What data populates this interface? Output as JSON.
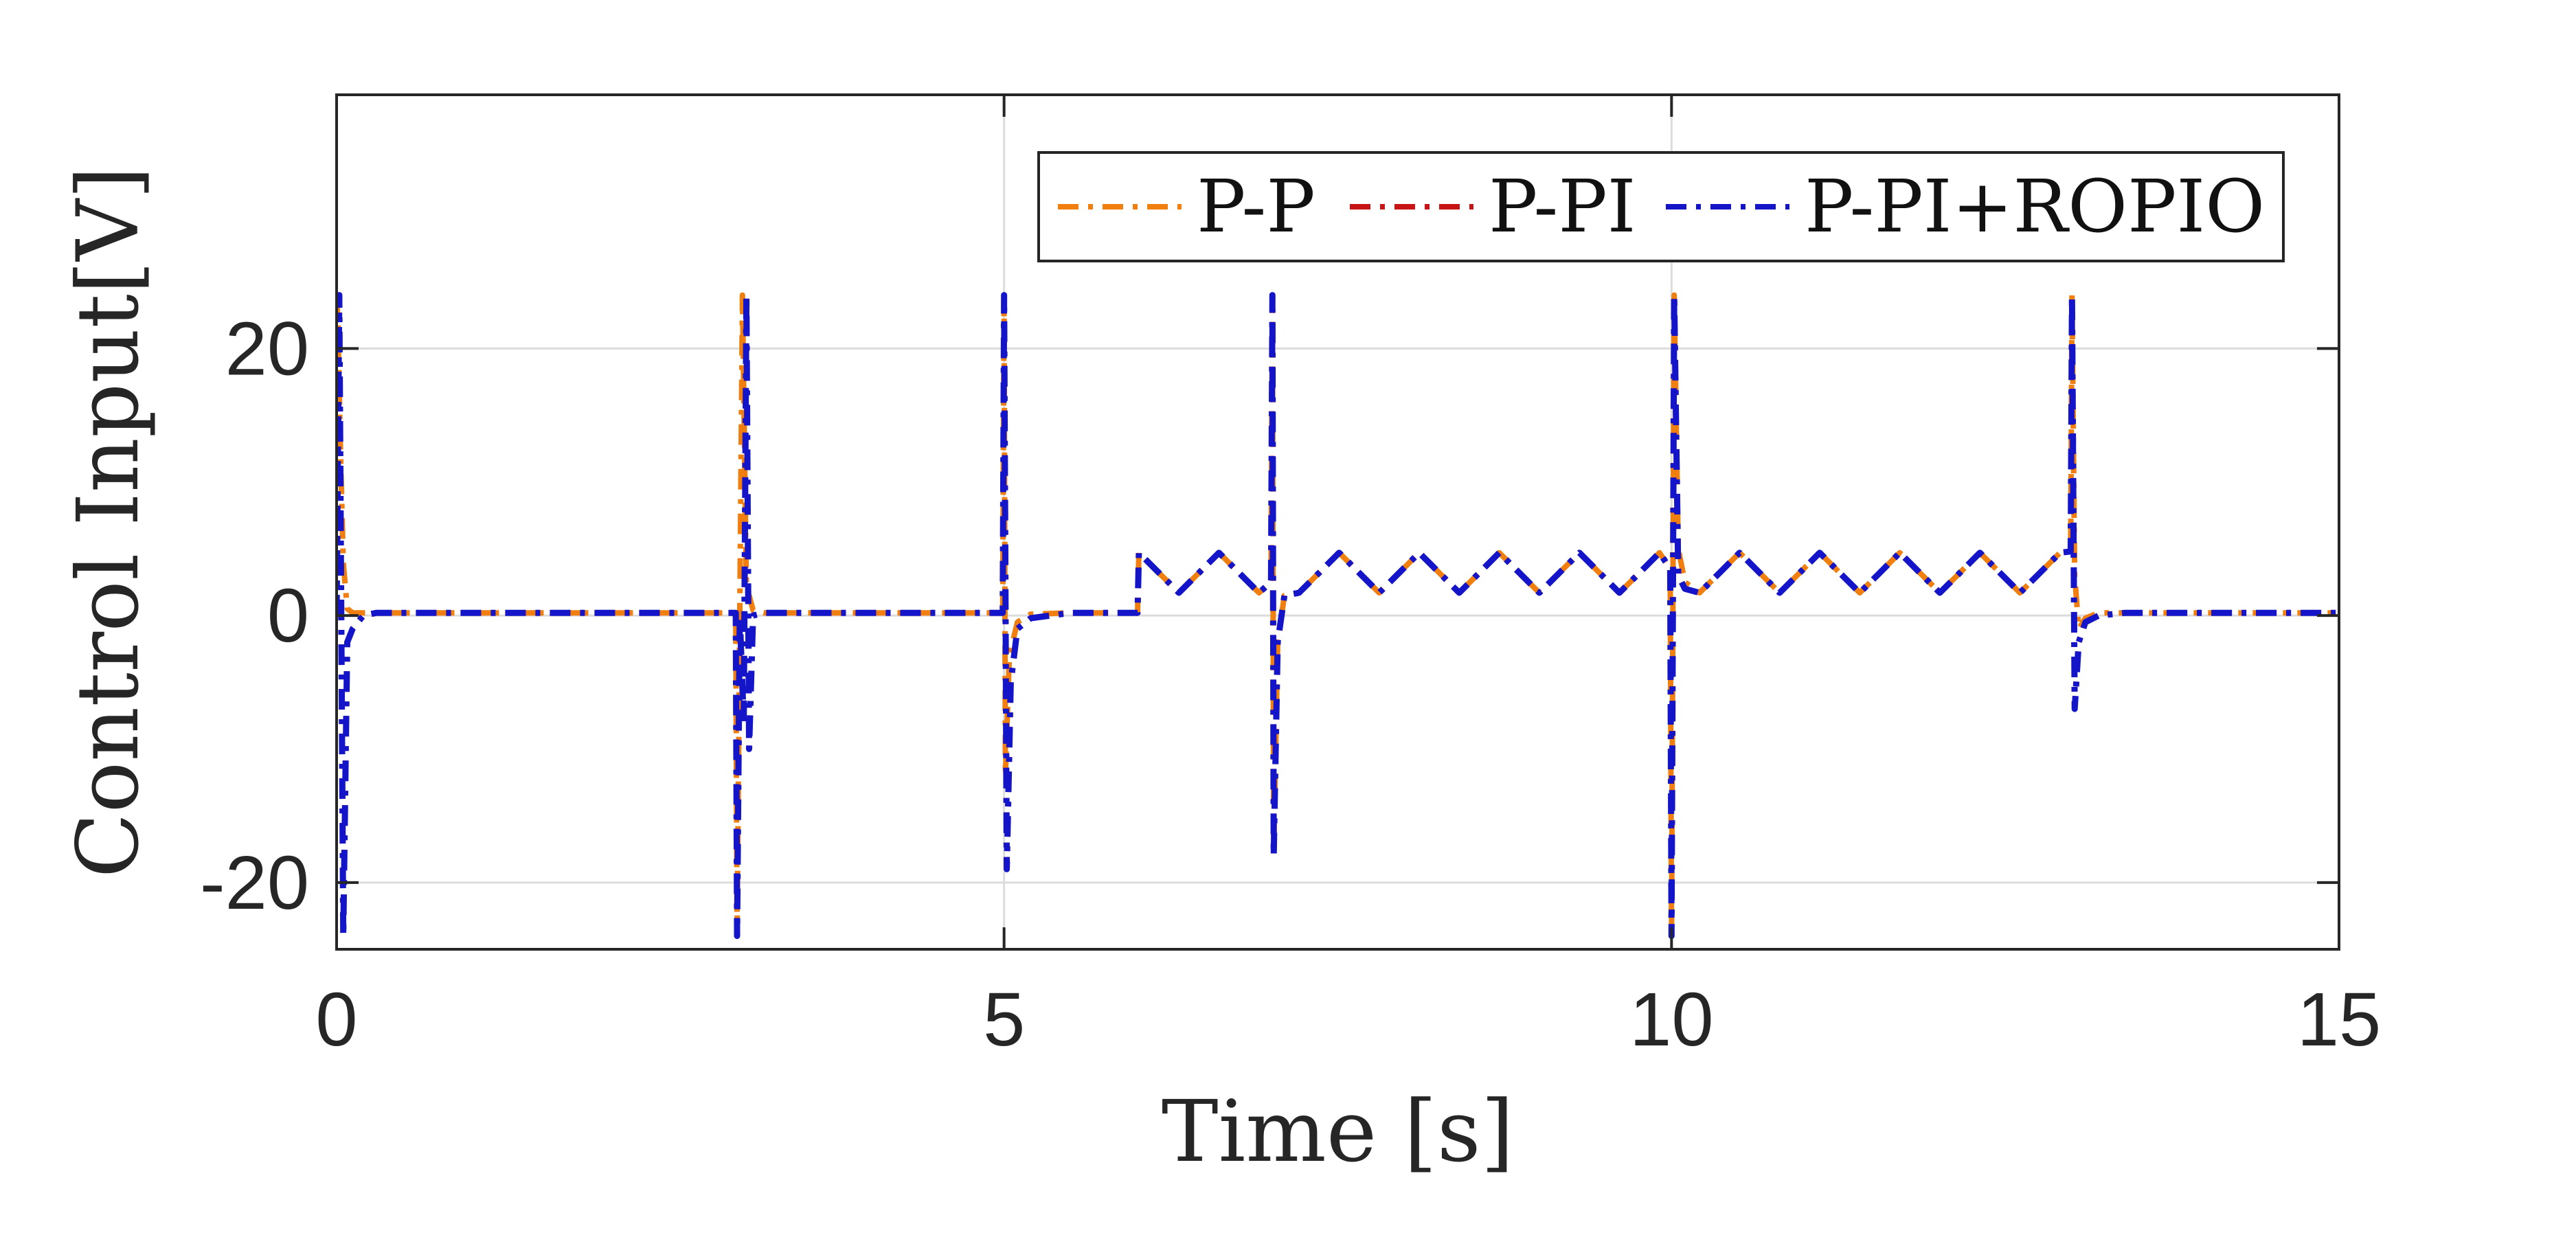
{
  "chart_data": {
    "type": "line",
    "title": "",
    "xlabel": "Time [s]",
    "ylabel": "Control Input[V]",
    "xlim": [
      0,
      15
    ],
    "ylim": [
      -25,
      39
    ],
    "xticks": [
      0,
      5,
      10,
      15
    ],
    "xtick_labels": [
      "0",
      "5",
      "10",
      "15"
    ],
    "yticks": [
      -20,
      0,
      20
    ],
    "ytick_labels": [
      "-20",
      "0",
      "20"
    ],
    "grid": true,
    "legend_position": "top-right",
    "series": [
      {
        "name": "P-P",
        "color": "#F07F10",
        "style": "dash-dot",
        "x": [
          0,
          0.01,
          0.03,
          0.05,
          0.08,
          0.12,
          0.2,
          2.99,
          3.0,
          3.04,
          3.07,
          3.09,
          3.12,
          3.2,
          3.3,
          4.99,
          5.0,
          5.01,
          5.04,
          5.1,
          5.2,
          5.5,
          6.0,
          6.01,
          6.16,
          6.31,
          6.46,
          6.61,
          6.76,
          6.91,
          7.0,
          7.01,
          7.02,
          7.05,
          7.1,
          7.21,
          7.36,
          7.51,
          7.66,
          7.81,
          7.96,
          8.11,
          8.26,
          8.41,
          8.56,
          8.71,
          8.86,
          9.01,
          9.16,
          9.31,
          9.46,
          9.61,
          9.76,
          9.91,
          9.99,
          10.0,
          10.02,
          10.05,
          10.1,
          10.21,
          10.36,
          10.51,
          10.66,
          10.81,
          10.96,
          11.11,
          11.26,
          11.41,
          11.56,
          11.71,
          11.86,
          12.01,
          12.16,
          12.31,
          12.46,
          12.61,
          12.76,
          12.91,
          12.99,
          13.0,
          13.02,
          13.05,
          13.1,
          13.2,
          13.4,
          15.0
        ],
        "y": [
          24,
          22,
          12,
          4,
          0.5,
          0.2,
          0.2,
          0.2,
          -24,
          24,
          2,
          1.5,
          0.4,
          0.2,
          0.2,
          0.2,
          24,
          -12,
          -3,
          -0.5,
          0.1,
          0.2,
          0.2,
          4.7,
          3.2,
          1.7,
          3.2,
          4.7,
          3.2,
          1.7,
          2.5,
          24,
          -18,
          -2,
          1.5,
          1.7,
          3.2,
          4.7,
          3.2,
          1.7,
          3.2,
          4.7,
          3.2,
          1.7,
          3.2,
          4.7,
          3.2,
          1.7,
          3.2,
          4.7,
          3.2,
          1.7,
          3.2,
          4.7,
          3.5,
          -24,
          24,
          5,
          2.5,
          1.7,
          3.2,
          4.7,
          3.2,
          1.7,
          3.2,
          4.7,
          3.2,
          1.7,
          3.2,
          4.7,
          3.2,
          1.7,
          3.2,
          4.7,
          3.2,
          1.7,
          3.2,
          4.7,
          4.8,
          24,
          3,
          -1,
          -0.2,
          0.2,
          0.2,
          0.2
        ]
      },
      {
        "name": "P-PI",
        "color": "#C81414",
        "style": "dash-dot",
        "x": [
          0,
          0.02,
          0.05,
          0.08,
          0.12,
          0.2,
          0.3,
          2.99,
          3.0,
          3.02,
          3.05,
          3.07,
          3.09,
          3.12,
          3.2,
          3.3,
          4.99,
          5.0,
          5.02,
          5.05,
          5.1,
          5.2,
          5.5,
          6.0,
          6.01,
          6.16,
          6.31,
          6.46,
          6.61,
          6.76,
          6.91,
          7.0,
          7.01,
          7.02,
          7.05,
          7.1,
          7.21,
          7.36,
          7.51,
          7.66,
          7.81,
          7.96,
          8.11,
          8.26,
          8.41,
          8.56,
          8.71,
          8.86,
          9.01,
          9.16,
          9.31,
          9.46,
          9.61,
          9.76,
          9.91,
          9.99,
          10.0,
          10.02,
          10.05,
          10.1,
          10.21,
          10.36,
          10.51,
          10.66,
          10.81,
          10.96,
          11.11,
          11.26,
          11.41,
          11.56,
          11.71,
          11.86,
          12.01,
          12.16,
          12.31,
          12.46,
          12.61,
          12.76,
          12.91,
          12.99,
          13.0,
          13.02,
          13.05,
          13.1,
          13.2,
          13.4,
          15.0
        ],
        "y": [
          0,
          24,
          -24,
          -2,
          -1,
          0,
          0.2,
          0.2,
          -24,
          0,
          -8,
          24,
          -10,
          0,
          0.2,
          0.2,
          0.2,
          24,
          -19,
          -5,
          -1,
          -0.2,
          0.2,
          0.2,
          4.7,
          3.2,
          1.7,
          3.2,
          4.7,
          3.2,
          1.7,
          2.5,
          24,
          -18,
          -2,
          1.5,
          1.7,
          3.2,
          4.7,
          3.2,
          1.7,
          3.2,
          4.7,
          3.2,
          1.7,
          3.2,
          4.7,
          3.2,
          1.7,
          3.2,
          4.7,
          3.2,
          1.7,
          3.2,
          4.7,
          3.5,
          -24,
          24,
          3,
          2,
          1.7,
          3.2,
          4.7,
          3.2,
          1.7,
          3.2,
          4.7,
          3.2,
          1.7,
          3.2,
          4.7,
          3.2,
          1.7,
          3.2,
          4.7,
          3.2,
          1.7,
          3.2,
          4.7,
          4.8,
          24,
          -7,
          -2,
          -0.5,
          0,
          0.2,
          0.2
        ]
      },
      {
        "name": "P-PI+ROPIO",
        "color": "#1414C8",
        "style": "dash-dot",
        "x": [
          0,
          0.02,
          0.05,
          0.08,
          0.12,
          0.2,
          0.3,
          2.99,
          3.0,
          3.02,
          3.05,
          3.07,
          3.09,
          3.12,
          3.2,
          3.3,
          4.99,
          5.0,
          5.02,
          5.05,
          5.1,
          5.2,
          5.5,
          6.0,
          6.01,
          6.16,
          6.31,
          6.46,
          6.61,
          6.76,
          6.91,
          7.0,
          7.01,
          7.02,
          7.05,
          7.1,
          7.21,
          7.36,
          7.51,
          7.66,
          7.81,
          7.96,
          8.11,
          8.26,
          8.41,
          8.56,
          8.71,
          8.86,
          9.01,
          9.16,
          9.31,
          9.46,
          9.61,
          9.76,
          9.91,
          9.99,
          10.0,
          10.02,
          10.05,
          10.1,
          10.21,
          10.36,
          10.51,
          10.66,
          10.81,
          10.96,
          11.11,
          11.26,
          11.41,
          11.56,
          11.71,
          11.86,
          12.01,
          12.16,
          12.31,
          12.46,
          12.61,
          12.76,
          12.91,
          12.99,
          13.0,
          13.02,
          13.05,
          13.1,
          13.2,
          13.4,
          15.0
        ],
        "y": [
          0,
          24,
          -24,
          -2,
          -1,
          0,
          0.2,
          0.2,
          -24,
          0,
          -8,
          24,
          -10,
          0,
          0.2,
          0.2,
          0.2,
          24,
          -19,
          -5,
          -1,
          -0.2,
          0.2,
          0.2,
          4.7,
          3.2,
          1.7,
          3.2,
          4.7,
          3.2,
          1.7,
          2.5,
          24,
          -18,
          -2,
          1.5,
          1.7,
          3.2,
          4.7,
          3.2,
          1.7,
          3.2,
          4.7,
          3.2,
          1.7,
          3.2,
          4.7,
          3.2,
          1.7,
          3.2,
          4.7,
          3.2,
          1.7,
          3.2,
          4.7,
          3.5,
          -24,
          24,
          3,
          2,
          1.7,
          3.2,
          4.7,
          3.2,
          1.7,
          3.2,
          4.7,
          3.2,
          1.7,
          3.2,
          4.7,
          3.2,
          1.7,
          3.2,
          4.7,
          3.2,
          1.7,
          3.2,
          4.7,
          4.8,
          24,
          -7,
          -2,
          -0.5,
          0,
          0.2,
          0.2
        ]
      }
    ]
  }
}
